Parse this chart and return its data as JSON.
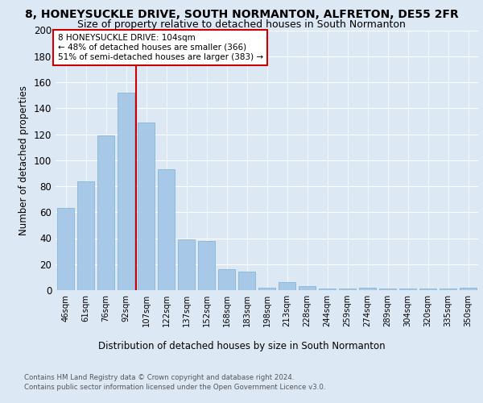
{
  "title": "8, HONEYSUCKLE DRIVE, SOUTH NORMANTON, ALFRETON, DE55 2FR",
  "subtitle": "Size of property relative to detached houses in South Normanton",
  "xlabel": "Distribution of detached houses by size in South Normanton",
  "ylabel": "Number of detached properties",
  "categories": [
    "46sqm",
    "61sqm",
    "76sqm",
    "92sqm",
    "107sqm",
    "122sqm",
    "137sqm",
    "152sqm",
    "168sqm",
    "183sqm",
    "198sqm",
    "213sqm",
    "228sqm",
    "244sqm",
    "259sqm",
    "274sqm",
    "289sqm",
    "304sqm",
    "320sqm",
    "335sqm",
    "350sqm"
  ],
  "values": [
    63,
    84,
    119,
    152,
    129,
    93,
    39,
    38,
    16,
    14,
    2,
    6,
    3,
    1,
    1,
    2,
    1,
    1,
    1,
    1,
    2
  ],
  "bar_color": "#a8c8e8",
  "bar_edge_color": "#7aafd4",
  "annotation_title": "8 HONEYSUCKLE DRIVE: 104sqm",
  "annotation_line1": "← 48% of detached houses are smaller (366)",
  "annotation_line2": "51% of semi-detached houses are larger (383) →",
  "ylim": [
    0,
    200
  ],
  "yticks": [
    0,
    20,
    40,
    60,
    80,
    100,
    120,
    140,
    160,
    180,
    200
  ],
  "footer1": "Contains HM Land Registry data © Crown copyright and database right 2024.",
  "footer2": "Contains public sector information licensed under the Open Government Licence v3.0.",
  "background_color": "#dde8f5",
  "title_fontsize": 10,
  "subtitle_fontsize": 9,
  "annotation_box_color": "#ffffff",
  "annotation_box_edge": "#cc0000",
  "red_line_color": "#cc0000",
  "highlight_bar_index": 3.5
}
